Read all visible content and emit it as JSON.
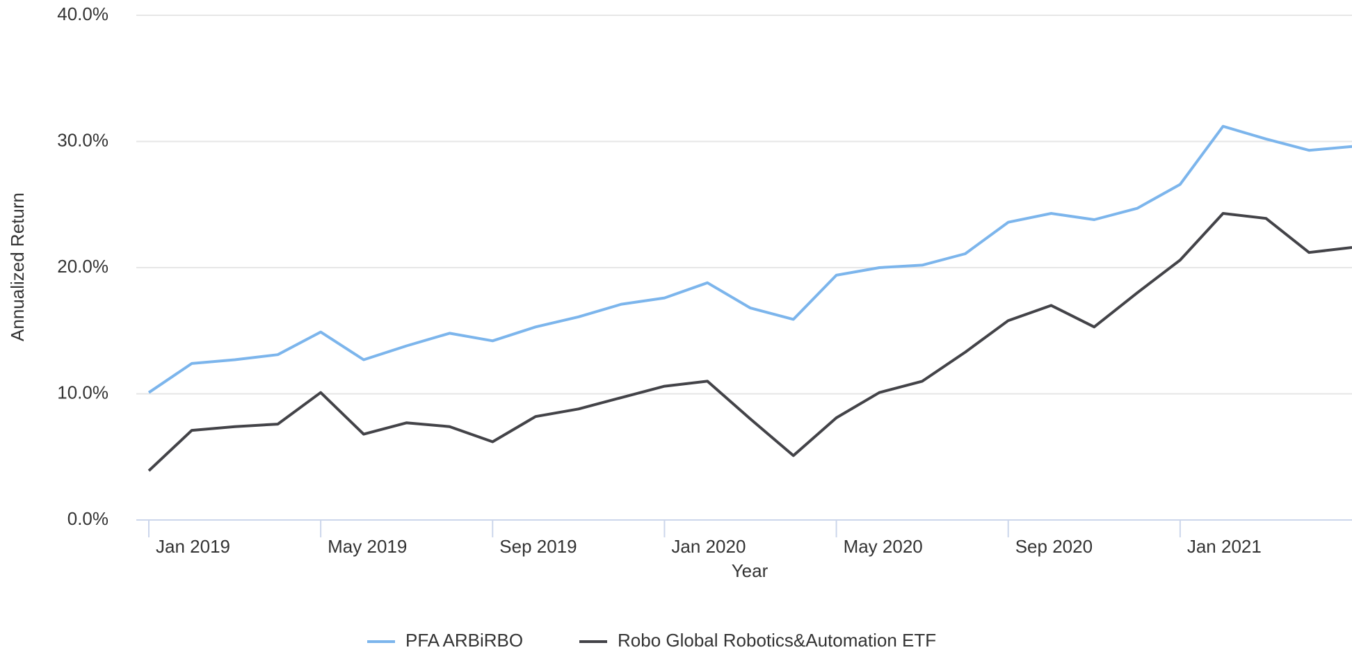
{
  "chart_data": {
    "type": "line",
    "x_label": "Year",
    "y_label": "Annualized Return",
    "x": [
      "2019-01",
      "2019-02",
      "2019-03",
      "2019-04",
      "2019-05",
      "2019-06",
      "2019-07",
      "2019-08",
      "2019-09",
      "2019-10",
      "2019-11",
      "2019-12",
      "2020-01",
      "2020-02",
      "2020-03",
      "2020-04",
      "2020-05",
      "2020-06",
      "2020-07",
      "2020-08",
      "2020-09",
      "2020-10",
      "2020-11",
      "2020-12",
      "2021-01",
      "2021-02",
      "2021-03",
      "2021-04",
      "2021-05"
    ],
    "xticks": [
      {
        "value": "2019-01",
        "label": "Jan 2019"
      },
      {
        "value": "2019-05",
        "label": "May 2019"
      },
      {
        "value": "2019-09",
        "label": "Sep 2019"
      },
      {
        "value": "2020-01",
        "label": "Jan 2020"
      },
      {
        "value": "2020-05",
        "label": "May 2020"
      },
      {
        "value": "2020-09",
        "label": "Sep 2020"
      },
      {
        "value": "2021-01",
        "label": "Jan 2021"
      }
    ],
    "ylim": [
      0,
      40
    ],
    "yticks": [
      {
        "value": 0,
        "label": "0.0%"
      },
      {
        "value": 10,
        "label": "10.0%"
      },
      {
        "value": 20,
        "label": "20.0%"
      },
      {
        "value": 30,
        "label": "30.0%"
      },
      {
        "value": 40,
        "label": "40.0%"
      }
    ],
    "grid": true,
    "legend": "bottom",
    "series": [
      {
        "name": "PFA ARBiRBO",
        "color": "#7cb5ec",
        "values": [
          10.1,
          12.4,
          12.7,
          13.1,
          14.9,
          12.7,
          13.8,
          14.8,
          14.2,
          15.3,
          16.1,
          17.1,
          17.6,
          18.8,
          16.8,
          15.9,
          19.4,
          20.0,
          20.2,
          21.1,
          23.6,
          24.3,
          23.8,
          24.7,
          26.6,
          31.2,
          30.2,
          29.3,
          29.6
        ]
      },
      {
        "name": "Robo Global Robotics&Automation ETF",
        "color": "#434348",
        "values": [
          3.9,
          7.1,
          7.4,
          7.6,
          10.1,
          6.8,
          7.7,
          7.4,
          6.2,
          8.2,
          8.8,
          9.7,
          10.6,
          11.0,
          8.0,
          5.1,
          8.1,
          10.1,
          11.0,
          13.3,
          15.8,
          17.0,
          15.3,
          18.0,
          20.6,
          24.3,
          23.9,
          21.2,
          21.6
        ]
      }
    ]
  }
}
